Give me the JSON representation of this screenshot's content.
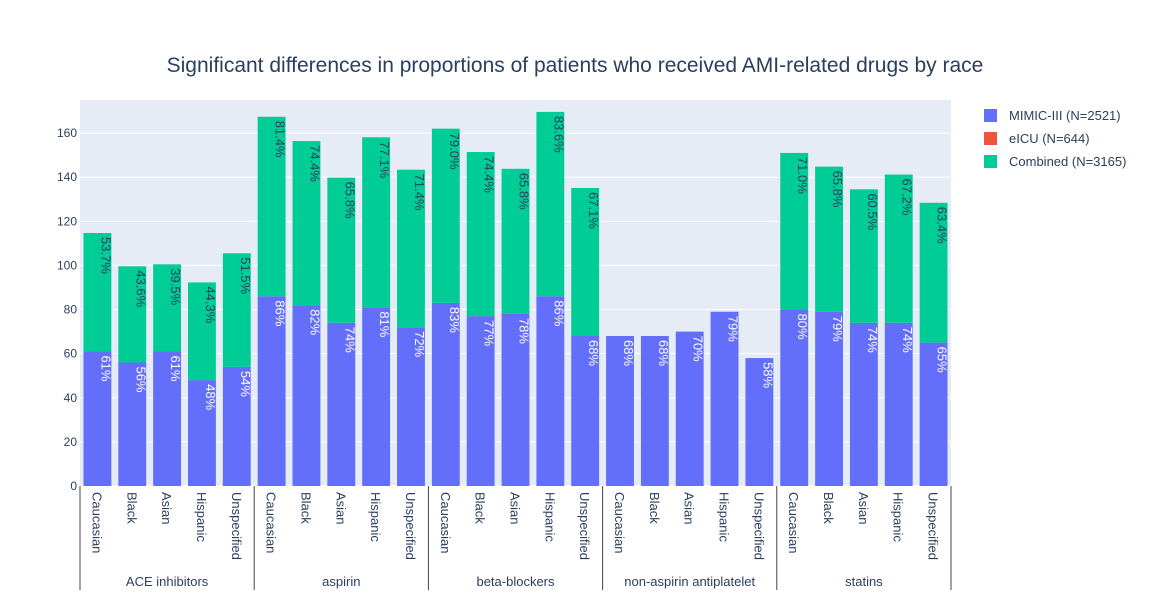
{
  "title": "Significant differences in proportions of patients who received AMI-related drugs by race",
  "legend": [
    {
      "name": "MIMIC-III (N=2521)",
      "color": "#636efa"
    },
    {
      "name": "eICU (N=644)",
      "color": "#EF553B"
    },
    {
      "name": "Combined (N=3165)",
      "color": "#00cc96"
    }
  ],
  "chart_data": {
    "type": "bar",
    "barmode": "stack",
    "title": "Significant differences in proportions of patients who received AMI-related drugs by race",
    "ylim": [
      0,
      175
    ],
    "yticks": [
      0,
      20,
      40,
      60,
      80,
      100,
      120,
      140,
      160
    ],
    "grid": true,
    "legend_position": "right",
    "groups": [
      {
        "name": "ACE inhibitors",
        "categories": [
          "Caucasian",
          "Black",
          "Asian",
          "Hispanic",
          "Unspecified"
        ]
      },
      {
        "name": "aspirin",
        "categories": [
          "Caucasian",
          "Black",
          "Asian",
          "Hispanic",
          "Unspecified"
        ]
      },
      {
        "name": "beta-blockers",
        "categories": [
          "Caucasian",
          "Black",
          "Asian",
          "Hispanic",
          "Unspecified"
        ]
      },
      {
        "name": "non-aspirin antiplatelet",
        "categories": [
          "Caucasian",
          "Black",
          "Asian",
          "Hispanic",
          "Unspecified"
        ]
      },
      {
        "name": "statins",
        "categories": [
          "Caucasian",
          "Black",
          "Asian",
          "Hispanic",
          "Unspecified"
        ]
      }
    ],
    "series": [
      {
        "name": "MIMIC-III (N=2521)",
        "color": "#636efa",
        "values": [
          61,
          56,
          61,
          48,
          54,
          86,
          82,
          74,
          81,
          72,
          83,
          77,
          78,
          86,
          68,
          68,
          68,
          70,
          79,
          58,
          80,
          79,
          74,
          74,
          65
        ],
        "labels": [
          "61%",
          "56%",
          "61%",
          "48%",
          "54%",
          "86%",
          "82%",
          "74%",
          "81%",
          "72%",
          "83%",
          "77%",
          "78%",
          "86%",
          "68%",
          "68%",
          "68%",
          "70%",
          "79%",
          "58%",
          "80%",
          "79%",
          "74%",
          "74%",
          "65%"
        ]
      },
      {
        "name": "eICU (N=644)",
        "color": "#EF553B",
        "values": [
          0,
          0,
          0,
          0,
          0,
          0,
          0,
          0,
          0,
          0,
          0,
          0,
          0,
          0,
          0,
          0,
          0,
          0,
          0,
          0,
          0,
          0,
          0,
          0,
          0
        ],
        "labels": [
          "",
          "",
          "",
          "",
          "",
          "",
          "",
          "",
          "",
          "",
          "",
          "",
          "",
          "",
          "",
          "",
          "",
          "",
          "",
          "",
          "",
          "",
          "",
          "",
          ""
        ]
      },
      {
        "name": "Combined (N=3165)",
        "color": "#00cc96",
        "values": [
          53.7,
          43.6,
          39.5,
          44.3,
          51.5,
          81.4,
          74.4,
          65.8,
          77.1,
          71.4,
          79.0,
          74.4,
          65.8,
          83.6,
          67.1,
          0,
          0,
          0,
          0,
          0,
          71.0,
          65.8,
          60.5,
          67.2,
          63.4
        ],
        "labels": [
          "53.7%",
          "43.6%",
          "39.5%",
          "44.3%",
          "51.5%",
          "81.4%",
          "74.4%",
          "65.8%",
          "77.1%",
          "71.4%",
          "79.0%",
          "74.4%",
          "65.8%",
          "83.6%",
          "67.1%",
          "",
          "",
          "",
          "",
          "",
          "71.0%",
          "65.8%",
          "60.5%",
          "67.2%",
          "63.4%"
        ]
      }
    ]
  }
}
